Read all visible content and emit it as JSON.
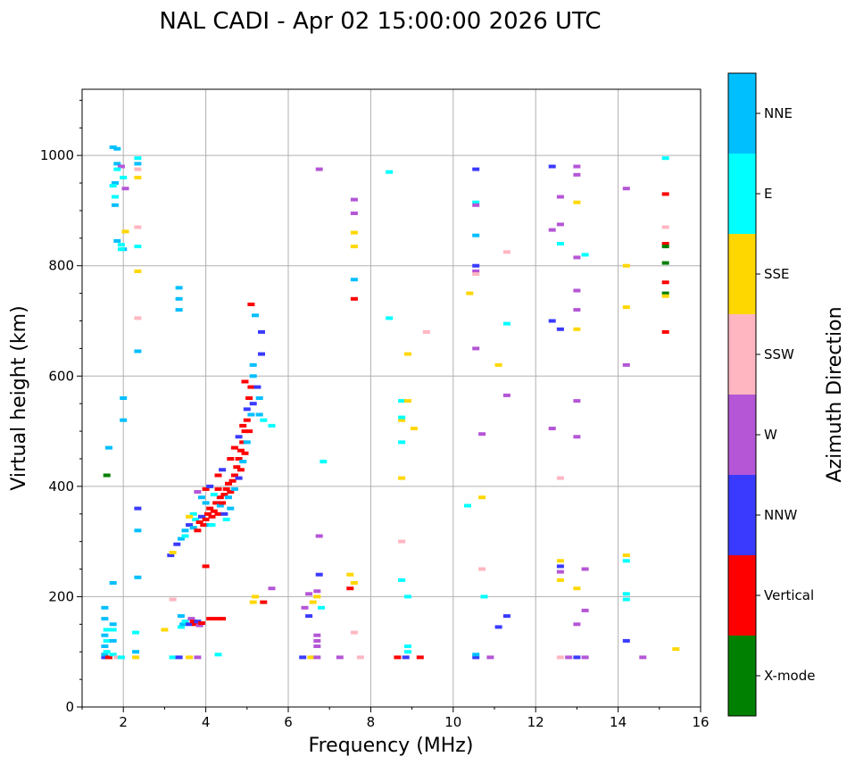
{
  "chart_data": {
    "type": "scatter",
    "title": "NAL CADI - Apr 02 15:00:00 2026 UTC",
    "xlabel": "Frequency (MHz)",
    "ylabel": "Virtual height (km)",
    "xlim": [
      1,
      16
    ],
    "ylim": [
      0,
      1120
    ],
    "xticks": [
      2,
      4,
      6,
      8,
      10,
      12,
      14,
      16
    ],
    "yticks": [
      0,
      200,
      400,
      600,
      800,
      1000
    ],
    "grid": true,
    "colorbar": {
      "title": "Azimuth Direction",
      "categories": [
        {
          "name": "X-mode",
          "color": "#008000"
        },
        {
          "name": "Vertical",
          "color": "#ff0000"
        },
        {
          "name": "NNW",
          "color": "#3a3aff"
        },
        {
          "name": "W",
          "color": "#b556d6"
        },
        {
          "name": "SSW",
          "color": "#ffb6c1"
        },
        {
          "name": "SSE",
          "color": "#ffd700"
        },
        {
          "name": "E",
          "color": "#00ffff"
        },
        {
          "name": "NNE",
          "color": "#00bfff"
        }
      ]
    },
    "points": [
      [
        1.55,
        90,
        "NNW"
      ],
      [
        1.55,
        95,
        "NNE"
      ],
      [
        1.6,
        100,
        "E"
      ],
      [
        1.55,
        110,
        "NNE"
      ],
      [
        1.6,
        120,
        "E"
      ],
      [
        1.55,
        130,
        "NNE"
      ],
      [
        1.6,
        140,
        "E"
      ],
      [
        1.55,
        160,
        "NNE"
      ],
      [
        1.55,
        180,
        "NNE"
      ],
      [
        1.65,
        90,
        "Vertical"
      ],
      [
        1.75,
        95,
        "E"
      ],
      [
        1.75,
        120,
        "NNE"
      ],
      [
        1.75,
        140,
        "E"
      ],
      [
        1.75,
        150,
        "NNE"
      ],
      [
        1.6,
        420,
        "X-mode"
      ],
      [
        1.65,
        470,
        "NNE"
      ],
      [
        1.75,
        225,
        "NNE"
      ],
      [
        1.85,
        90,
        "SSW"
      ],
      [
        1.95,
        90,
        "E"
      ],
      [
        1.75,
        1015,
        "NNE"
      ],
      [
        1.85,
        1012,
        "NNE"
      ],
      [
        1.85,
        985,
        "NNE"
      ],
      [
        1.95,
        980,
        "W"
      ],
      [
        1.85,
        975,
        "E"
      ],
      [
        2.0,
        960,
        "E"
      ],
      [
        1.8,
        950,
        "NNE"
      ],
      [
        1.75,
        945,
        "E"
      ],
      [
        2.05,
        940,
        "W"
      ],
      [
        1.8,
        925,
        "E"
      ],
      [
        1.8,
        910,
        "NNE"
      ],
      [
        1.85,
        845,
        "NNE"
      ],
      [
        1.95,
        838,
        "E"
      ],
      [
        2.0,
        830,
        "NNE"
      ],
      [
        1.95,
        830,
        "E"
      ],
      [
        2.05,
        862,
        "SSE"
      ],
      [
        2.0,
        560,
        "NNE"
      ],
      [
        2.0,
        520,
        "NNE"
      ],
      [
        2.3,
        100,
        "NNE"
      ],
      [
        2.3,
        90,
        "SSE"
      ],
      [
        2.3,
        135,
        "E"
      ],
      [
        2.35,
        235,
        "NNE"
      ],
      [
        2.35,
        360,
        "NNW"
      ],
      [
        2.35,
        320,
        "NNE"
      ],
      [
        2.35,
        645,
        "NNE"
      ],
      [
        2.35,
        790,
        "SSE"
      ],
      [
        2.35,
        835,
        "E"
      ],
      [
        2.35,
        960,
        "SSE"
      ],
      [
        2.35,
        975,
        "SSW"
      ],
      [
        2.35,
        995,
        "E"
      ],
      [
        2.35,
        985,
        "NNE"
      ],
      [
        2.35,
        870,
        "SSW"
      ],
      [
        2.35,
        705,
        "SSW"
      ],
      [
        3.35,
        760,
        "NNE"
      ],
      [
        3.35,
        740,
        "NNE"
      ],
      [
        3.35,
        720,
        "NNE"
      ],
      [
        3.0,
        140,
        "SSE"
      ],
      [
        3.2,
        90,
        "E"
      ],
      [
        3.2,
        195,
        "SSW"
      ],
      [
        3.35,
        90,
        "NNW"
      ],
      [
        3.4,
        145,
        "E"
      ],
      [
        3.4,
        165,
        "NNE"
      ],
      [
        3.45,
        150,
        "NNE"
      ],
      [
        3.5,
        155,
        "E"
      ],
      [
        3.6,
        150,
        "NNW"
      ],
      [
        3.65,
        160,
        "W"
      ],
      [
        3.7,
        155,
        "Vertical"
      ],
      [
        3.75,
        150,
        "Vertical"
      ],
      [
        3.8,
        155,
        "NNW"
      ],
      [
        3.85,
        148,
        "W"
      ],
      [
        3.9,
        152,
        "Vertical"
      ],
      [
        4.1,
        160,
        "Vertical"
      ],
      [
        4.25,
        160,
        "Vertical"
      ],
      [
        4.4,
        160,
        "Vertical"
      ],
      [
        3.6,
        90,
        "SSE"
      ],
      [
        4.0,
        255,
        "Vertical"
      ],
      [
        3.8,
        90,
        "W"
      ],
      [
        4.3,
        95,
        "E"
      ],
      [
        3.15,
        275,
        "NNW"
      ],
      [
        3.2,
        280,
        "SSE"
      ],
      [
        3.3,
        295,
        "NNW"
      ],
      [
        3.4,
        305,
        "NNE"
      ],
      [
        3.5,
        310,
        "E"
      ],
      [
        3.5,
        320,
        "NNE"
      ],
      [
        3.6,
        330,
        "NNW"
      ],
      [
        3.7,
        325,
        "NNE"
      ],
      [
        3.75,
        340,
        "E"
      ],
      [
        3.8,
        320,
        "Vertical"
      ],
      [
        3.85,
        335,
        "Vertical"
      ],
      [
        3.9,
        345,
        "NNW"
      ],
      [
        3.95,
        330,
        "Vertical"
      ],
      [
        4.0,
        340,
        "Vertical"
      ],
      [
        4.05,
        350,
        "Vertical"
      ],
      [
        4.1,
        360,
        "Vertical"
      ],
      [
        4.1,
        330,
        "NNE"
      ],
      [
        4.15,
        345,
        "Vertical"
      ],
      [
        4.2,
        355,
        "Vertical"
      ],
      [
        4.25,
        370,
        "Vertical"
      ],
      [
        4.3,
        350,
        "Vertical"
      ],
      [
        4.35,
        365,
        "NNE"
      ],
      [
        4.35,
        380,
        "Vertical"
      ],
      [
        4.4,
        370,
        "Vertical"
      ],
      [
        4.45,
        385,
        "Vertical"
      ],
      [
        4.45,
        350,
        "NNW"
      ],
      [
        4.5,
        395,
        "Vertical"
      ],
      [
        4.55,
        380,
        "NNE"
      ],
      [
        4.55,
        405,
        "Vertical"
      ],
      [
        4.6,
        390,
        "Vertical"
      ],
      [
        4.65,
        410,
        "Vertical"
      ],
      [
        4.7,
        420,
        "Vertical"
      ],
      [
        4.7,
        395,
        "NNE"
      ],
      [
        4.75,
        435,
        "Vertical"
      ],
      [
        4.8,
        415,
        "NNW"
      ],
      [
        4.8,
        450,
        "Vertical"
      ],
      [
        4.85,
        430,
        "Vertical"
      ],
      [
        4.85,
        465,
        "Vertical"
      ],
      [
        4.9,
        480,
        "Vertical"
      ],
      [
        4.9,
        445,
        "NNE"
      ],
      [
        4.95,
        500,
        "Vertical"
      ],
      [
        4.95,
        460,
        "Vertical"
      ],
      [
        5.0,
        520,
        "Vertical"
      ],
      [
        5.0,
        480,
        "NNE"
      ],
      [
        5.0,
        540,
        "NNW"
      ],
      [
        5.05,
        500,
        "Vertical"
      ],
      [
        5.05,
        560,
        "Vertical"
      ],
      [
        5.1,
        530,
        "NNE"
      ],
      [
        5.1,
        580,
        "Vertical"
      ],
      [
        5.15,
        550,
        "NNW"
      ],
      [
        4.95,
        590,
        "Vertical"
      ],
      [
        5.15,
        600,
        "NNE"
      ],
      [
        5.25,
        580,
        "NNW"
      ],
      [
        5.3,
        560,
        "NNE"
      ],
      [
        5.3,
        530,
        "NNE"
      ],
      [
        5.4,
        520,
        "E"
      ],
      [
        5.15,
        620,
        "NNE"
      ],
      [
        5.35,
        640,
        "NNW"
      ],
      [
        5.35,
        680,
        "NNW"
      ],
      [
        5.2,
        710,
        "NNE"
      ],
      [
        5.1,
        730,
        "Vertical"
      ],
      [
        3.8,
        390,
        "W"
      ],
      [
        3.9,
        380,
        "NNE"
      ],
      [
        4.0,
        395,
        "Vertical"
      ],
      [
        4.1,
        400,
        "NNW"
      ],
      [
        4.2,
        385,
        "E"
      ],
      [
        4.3,
        395,
        "Vertical"
      ],
      [
        3.7,
        350,
        "E"
      ],
      [
        3.6,
        345,
        "SSE"
      ],
      [
        4.0,
        370,
        "NNE"
      ],
      [
        4.15,
        330,
        "E"
      ],
      [
        4.3,
        420,
        "Vertical"
      ],
      [
        4.4,
        430,
        "NNW"
      ],
      [
        4.6,
        450,
        "Vertical"
      ],
      [
        4.7,
        470,
        "Vertical"
      ],
      [
        4.8,
        490,
        "NNW"
      ],
      [
        4.9,
        510,
        "Vertical"
      ],
      [
        4.6,
        360,
        "NNE"
      ],
      [
        4.5,
        340,
        "E"
      ],
      [
        5.2,
        200,
        "SSE"
      ],
      [
        5.15,
        190,
        "SSE"
      ],
      [
        5.4,
        190,
        "Vertical"
      ],
      [
        5.6,
        215,
        "W"
      ],
      [
        5.6,
        510,
        "E"
      ],
      [
        6.35,
        90,
        "NNW"
      ],
      [
        6.4,
        180,
        "W"
      ],
      [
        6.5,
        165,
        "NNW"
      ],
      [
        6.55,
        90,
        "SSE"
      ],
      [
        6.6,
        190,
        "SSE"
      ],
      [
        6.5,
        205,
        "W"
      ],
      [
        6.7,
        90,
        "W"
      ],
      [
        6.7,
        110,
        "W"
      ],
      [
        6.7,
        120,
        "W"
      ],
      [
        6.7,
        130,
        "W"
      ],
      [
        6.7,
        200,
        "SSE"
      ],
      [
        6.7,
        210,
        "W"
      ],
      [
        6.75,
        240,
        "NNW"
      ],
      [
        6.8,
        180,
        "E"
      ],
      [
        6.75,
        310,
        "W"
      ],
      [
        6.85,
        445,
        "E"
      ],
      [
        6.75,
        975,
        "W"
      ],
      [
        7.25,
        90,
        "W"
      ],
      [
        7.5,
        240,
        "SSE"
      ],
      [
        7.5,
        215,
        "Vertical"
      ],
      [
        7.6,
        225,
        "SSE"
      ],
      [
        7.6,
        135,
        "SSW"
      ],
      [
        7.75,
        90,
        "SSW"
      ],
      [
        7.6,
        740,
        "Vertical"
      ],
      [
        7.6,
        775,
        "NNE"
      ],
      [
        7.6,
        835,
        "SSE"
      ],
      [
        7.6,
        860,
        "SSE"
      ],
      [
        7.6,
        895,
        "W"
      ],
      [
        7.6,
        920,
        "W"
      ],
      [
        8.45,
        970,
        "E"
      ],
      [
        8.45,
        705,
        "E"
      ],
      [
        8.75,
        555,
        "E"
      ],
      [
        8.75,
        520,
        "SSE"
      ],
      [
        8.75,
        525,
        "E"
      ],
      [
        8.75,
        480,
        "E"
      ],
      [
        8.75,
        415,
        "SSE"
      ],
      [
        8.75,
        300,
        "SSW"
      ],
      [
        8.75,
        230,
        "E"
      ],
      [
        8.9,
        640,
        "SSE"
      ],
      [
        8.9,
        555,
        "SSE"
      ],
      [
        9.05,
        505,
        "SSE"
      ],
      [
        8.9,
        200,
        "E"
      ],
      [
        8.9,
        110,
        "E"
      ],
      [
        8.9,
        100,
        "E"
      ],
      [
        8.65,
        90,
        "Vertical"
      ],
      [
        8.85,
        90,
        "NNW"
      ],
      [
        9.2,
        90,
        "Vertical"
      ],
      [
        9.35,
        680,
        "SSW"
      ],
      [
        10.35,
        365,
        "E"
      ],
      [
        10.4,
        750,
        "SSE"
      ],
      [
        10.55,
        975,
        "NNW"
      ],
      [
        10.55,
        915,
        "E"
      ],
      [
        10.55,
        910,
        "W"
      ],
      [
        10.55,
        855,
        "NNE"
      ],
      [
        10.55,
        800,
        "NNW"
      ],
      [
        10.55,
        790,
        "W"
      ],
      [
        10.55,
        785,
        "SSW"
      ],
      [
        10.55,
        650,
        "W"
      ],
      [
        10.55,
        90,
        "NNW"
      ],
      [
        10.55,
        95,
        "NNE"
      ],
      [
        10.7,
        495,
        "W"
      ],
      [
        10.7,
        380,
        "SSE"
      ],
      [
        10.7,
        250,
        "SSW"
      ],
      [
        10.75,
        200,
        "E"
      ],
      [
        10.9,
        90,
        "W"
      ],
      [
        11.1,
        620,
        "SSE"
      ],
      [
        11.1,
        145,
        "NNW"
      ],
      [
        11.3,
        825,
        "SSW"
      ],
      [
        11.3,
        695,
        "E"
      ],
      [
        11.3,
        565,
        "W"
      ],
      [
        11.3,
        165,
        "NNW"
      ],
      [
        12.4,
        980,
        "NNW"
      ],
      [
        12.4,
        865,
        "W"
      ],
      [
        12.4,
        700,
        "NNW"
      ],
      [
        12.4,
        505,
        "W"
      ],
      [
        12.6,
        925,
        "W"
      ],
      [
        12.6,
        875,
        "W"
      ],
      [
        12.6,
        840,
        "E"
      ],
      [
        12.6,
        685,
        "NNW"
      ],
      [
        12.6,
        415,
        "SSW"
      ],
      [
        12.6,
        265,
        "SSE"
      ],
      [
        12.6,
        255,
        "NNW"
      ],
      [
        12.6,
        245,
        "W"
      ],
      [
        12.6,
        230,
        "SSE"
      ],
      [
        12.6,
        90,
        "SSW"
      ],
      [
        12.8,
        90,
        "W"
      ],
      [
        13.0,
        980,
        "W"
      ],
      [
        13.0,
        965,
        "W"
      ],
      [
        13.0,
        915,
        "SSE"
      ],
      [
        13.0,
        815,
        "W"
      ],
      [
        13.0,
        755,
        "W"
      ],
      [
        13.0,
        720,
        "W"
      ],
      [
        13.0,
        685,
        "SSE"
      ],
      [
        13.0,
        555,
        "W"
      ],
      [
        13.0,
        490,
        "W"
      ],
      [
        13.0,
        215,
        "SSE"
      ],
      [
        13.0,
        150,
        "W"
      ],
      [
        13.0,
        90,
        "NNW"
      ],
      [
        13.2,
        820,
        "E"
      ],
      [
        13.2,
        250,
        "W"
      ],
      [
        13.2,
        175,
        "W"
      ],
      [
        13.2,
        90,
        "W"
      ],
      [
        14.2,
        940,
        "W"
      ],
      [
        14.2,
        800,
        "SSE"
      ],
      [
        14.2,
        725,
        "SSE"
      ],
      [
        14.2,
        620,
        "W"
      ],
      [
        14.2,
        275,
        "SSE"
      ],
      [
        14.2,
        265,
        "E"
      ],
      [
        14.2,
        205,
        "E"
      ],
      [
        14.2,
        195,
        "E"
      ],
      [
        14.2,
        120,
        "NNW"
      ],
      [
        14.6,
        90,
        "W"
      ],
      [
        15.15,
        995,
        "E"
      ],
      [
        15.15,
        930,
        "Vertical"
      ],
      [
        15.15,
        870,
        "SSW"
      ],
      [
        15.15,
        840,
        "Vertical"
      ],
      [
        15.15,
        835,
        "X-mode"
      ],
      [
        15.15,
        805,
        "X-mode"
      ],
      [
        15.15,
        770,
        "Vertical"
      ],
      [
        15.15,
        750,
        "X-mode"
      ],
      [
        15.15,
        745,
        "SSE"
      ],
      [
        15.15,
        680,
        "Vertical"
      ],
      [
        15.4,
        105,
        "SSE"
      ]
    ]
  }
}
